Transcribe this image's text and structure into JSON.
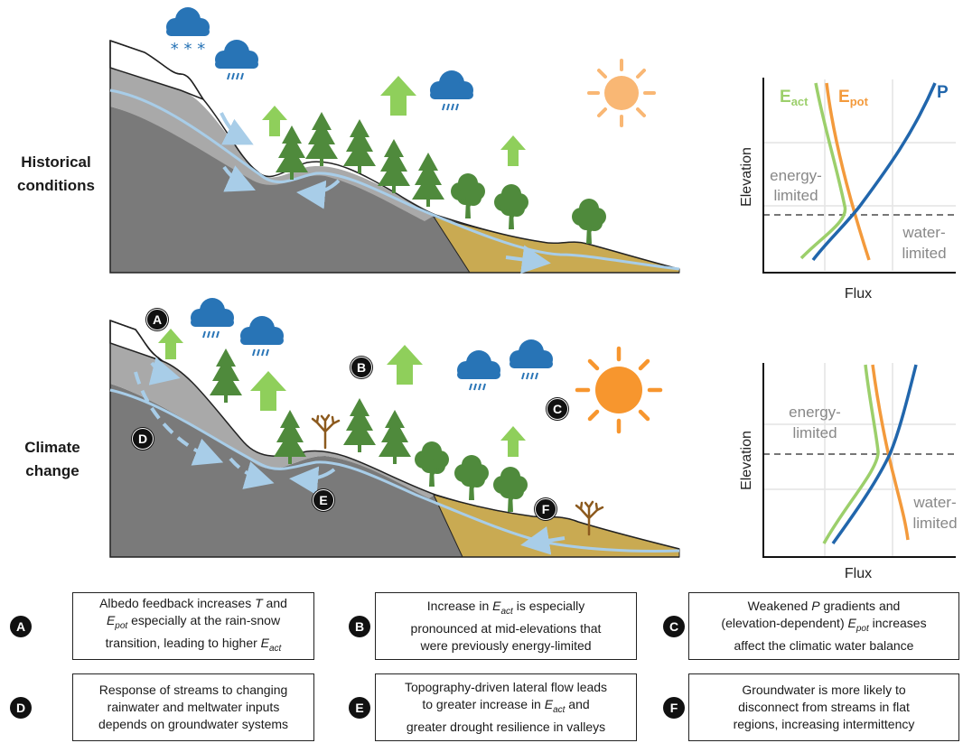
{
  "row_labels": {
    "historical": [
      "Historical",
      "conditions"
    ],
    "climate": [
      "Climate",
      "change"
    ]
  },
  "badges": [
    "A",
    "B",
    "C",
    "D",
    "E",
    "F"
  ],
  "charts": {
    "historical": {
      "series": [
        "E",
        "act",
        "E",
        "pot",
        "P"
      ],
      "ylabel": "Elevation",
      "xlabel": "Flux",
      "energy_label": [
        "energy-",
        "limited"
      ],
      "water_label": [
        "water-",
        "limited"
      ]
    },
    "climate": {
      "ylabel": "Elevation",
      "xlabel": "Flux",
      "energy_label": [
        "energy-",
        "limited"
      ],
      "water_label": [
        "water-",
        "limited"
      ]
    }
  },
  "colors": {
    "e_act": "#9ccf6b",
    "e_pot": "#f39a3c",
    "precip": "#2166ac",
    "bedrock": "#7a7a7a",
    "regolith": "#a9a9a9",
    "valley_soil": "#c9aa52",
    "snow": "#ffffff",
    "groundwater": "#a8cde8",
    "tree": "#4f8a3c",
    "up_arrow": "#8fcf5b",
    "sun_hist": "#f9b774",
    "sun_cc": "#f7962e",
    "cloud": "#2874b6",
    "dead_tree": "#8c5a1e"
  },
  "icons": [
    "cloud-snow-icon",
    "cloud-rain-icon",
    "sun-icon",
    "conifer-tree-icon",
    "deciduous-tree-icon",
    "dead-tree-icon",
    "up-arrow-icon",
    "flow-arrow-icon"
  ],
  "callouts": [
    {
      "badge": "A",
      "lines": [
        "Albedo feedback increases T and",
        "E_pot especially at the rain-snow",
        "transition, leading to higher E_act"
      ],
      "rich": [
        [
          [
            "Albedo feedback increases ",
            ""
          ],
          [
            "T",
            "i"
          ],
          [
            " and",
            ""
          ]
        ],
        [
          [
            "E",
            "i"
          ],
          [
            "pot",
            "sub"
          ],
          [
            " especially at the rain-snow",
            ""
          ]
        ],
        [
          [
            "transition, leading to higher ",
            ""
          ],
          [
            "E",
            "i"
          ],
          [
            "act",
            "sub"
          ]
        ]
      ]
    },
    {
      "badge": "B",
      "lines": [
        "Increase in E_act is especially",
        "pronounced at mid-elevations that",
        "were previously energy-limited"
      ],
      "rich": [
        [
          [
            "Increase in ",
            ""
          ],
          [
            "E",
            "i"
          ],
          [
            "act",
            "sub"
          ],
          [
            " is especially",
            ""
          ]
        ],
        [
          [
            "pronounced at mid-elevations that",
            ""
          ]
        ],
        [
          [
            "were previously energy-limited",
            ""
          ]
        ]
      ]
    },
    {
      "badge": "C",
      "lines": [
        "Weakened P gradients and",
        "(elevation-dependent) E_pot increases",
        "affect the climatic water balance"
      ],
      "rich": [
        [
          [
            "Weakened ",
            ""
          ],
          [
            "P",
            "i"
          ],
          [
            " gradients and",
            ""
          ]
        ],
        [
          [
            "(elevation-dependent) ",
            ""
          ],
          [
            "E",
            "i"
          ],
          [
            "pot",
            "sub"
          ],
          [
            " increases",
            ""
          ]
        ],
        [
          [
            "affect the climatic water balance",
            ""
          ]
        ]
      ]
    },
    {
      "badge": "D",
      "lines": [
        "Response of streams to changing",
        "rainwater and meltwater inputs",
        "depends on groundwater systems"
      ],
      "rich": [
        [
          [
            "Response of streams to changing",
            ""
          ]
        ],
        [
          [
            "rainwater and meltwater inputs",
            ""
          ]
        ],
        [
          [
            "depends on groundwater systems",
            ""
          ]
        ]
      ]
    },
    {
      "badge": "E",
      "lines": [
        "Topography-driven lateral flow leads",
        "to greater increase in E_act and",
        "greater drought resilience in valleys"
      ],
      "rich": [
        [
          [
            "Topography-driven lateral flow leads",
            ""
          ]
        ],
        [
          [
            "to greater increase in ",
            ""
          ],
          [
            "E",
            "i"
          ],
          [
            "act",
            "sub"
          ],
          [
            " and",
            ""
          ]
        ],
        [
          [
            "greater drought resilience in valleys",
            ""
          ]
        ]
      ]
    },
    {
      "badge": "F",
      "lines": [
        "Groundwater is more likely to",
        "disconnect from streams in flat",
        "regions, increasing intermittency"
      ],
      "rich": [
        [
          [
            "Groundwater is more likely to",
            ""
          ]
        ],
        [
          [
            "disconnect from streams in flat",
            ""
          ]
        ],
        [
          [
            "regions, increasing intermittency",
            ""
          ]
        ]
      ]
    }
  ]
}
